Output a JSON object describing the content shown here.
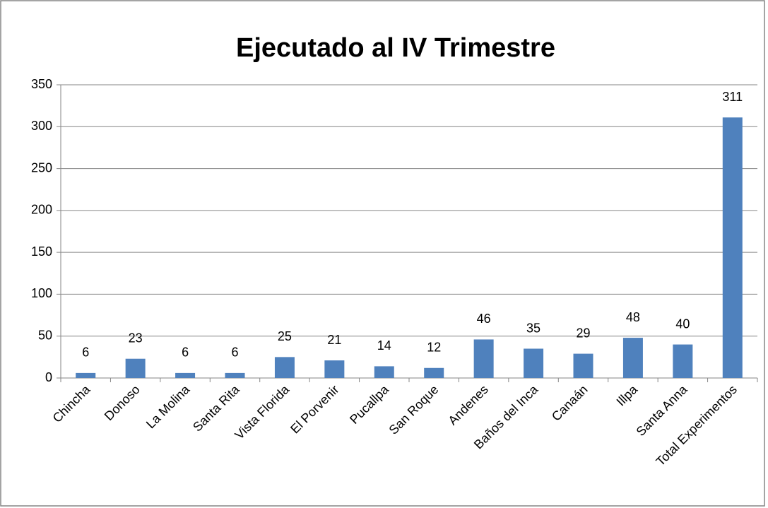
{
  "chart_data": {
    "type": "bar",
    "title": "Ejecutado al IV Trimestre",
    "categories": [
      "Chincha",
      "Donoso",
      "La Molina",
      "Santa Rita",
      "Vista Florida",
      "El Porvenir",
      "Pucallpa",
      "San Roque",
      "Andenes",
      "Baños del Inca",
      "Canaán",
      "Illpa",
      "Santa Anna",
      "Total Experimentos"
    ],
    "values": [
      6,
      23,
      6,
      6,
      25,
      21,
      14,
      12,
      46,
      35,
      29,
      48,
      40,
      311
    ],
    "color": "#4f81bd",
    "ylim": [
      0,
      350
    ],
    "yticks": [
      0,
      50,
      100,
      150,
      200,
      250,
      300,
      350
    ],
    "grid": true
  }
}
